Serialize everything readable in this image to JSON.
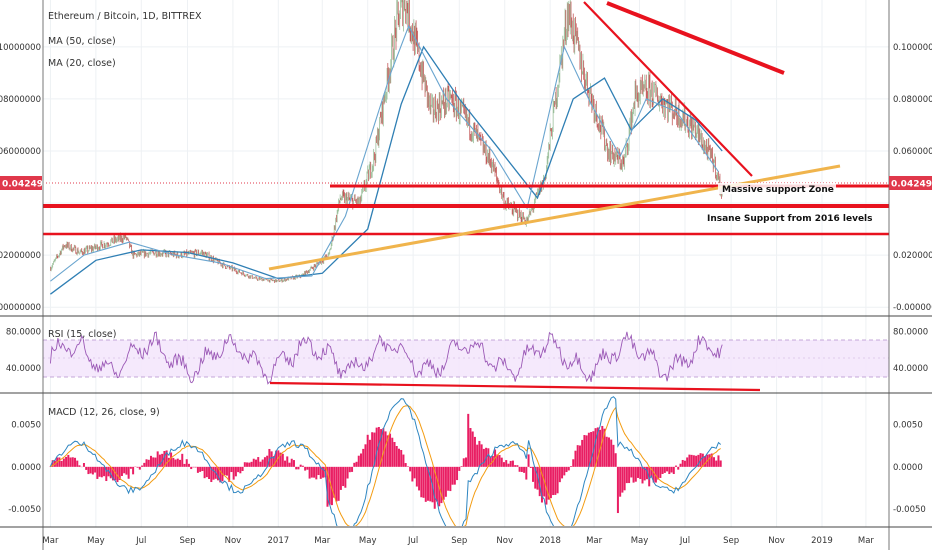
{
  "colors": {
    "price_line": "#7b3f3f",
    "ma50": "#2f7fb4",
    "ma20": "#6aa5cf",
    "rsi": "#9b59b6",
    "rsi_band": "#f3e5fb",
    "macd_line": "#2e86c1",
    "signal_line": "#f39c12",
    "hist": "#e91e63",
    "annotation_red": "#e8121e",
    "trend_orange": "#f0b44c",
    "price_label_bg": "#e0384b"
  },
  "chart_data": [
    {
      "type": "line",
      "title": "Ethereum / Bitcoin, 1D, BITTREX",
      "series": [
        {
          "name": "MA (50, close)"
        },
        {
          "name": "MA (20, close)"
        }
      ],
      "x_labels": [
        "Mar",
        "May",
        "Jul",
        "Sep",
        "Nov",
        "2017",
        "Mar",
        "May",
        "Jul",
        "Sep",
        "Nov",
        "2018",
        "Mar",
        "May",
        "Jul",
        "Sep",
        "Nov",
        "2019",
        "Mar"
      ],
      "y_ticks": [
        "0.10000000",
        "0.08000000",
        "0.06000000",
        "0.04249000",
        "0.02000000",
        "-0.00000000"
      ],
      "ylim": [
        -0.003,
        0.118
      ],
      "last_price": "0.04249000",
      "price_path": [
        [
          "2016-03-01",
          0.015
        ],
        [
          "2016-03-20",
          0.024
        ],
        [
          "2016-04-10",
          0.021
        ],
        [
          "2016-05-01",
          0.023
        ],
        [
          "2016-05-20",
          0.025
        ],
        [
          "2016-06-10",
          0.027
        ],
        [
          "2016-06-20",
          0.02
        ],
        [
          "2016-07-20",
          0.021
        ],
        [
          "2016-08-20",
          0.02
        ],
        [
          "2016-09-20",
          0.021
        ],
        [
          "2016-10-20",
          0.016
        ],
        [
          "2016-12-01",
          0.011
        ],
        [
          "2017-01-01",
          0.01
        ],
        [
          "2017-02-01",
          0.012
        ],
        [
          "2017-03-10",
          0.02
        ],
        [
          "2017-03-25",
          0.042
        ],
        [
          "2017-04-20",
          0.04
        ],
        [
          "2017-05-10",
          0.058
        ],
        [
          "2017-06-10",
          0.11
        ],
        [
          "2017-06-20",
          0.118
        ],
        [
          "2017-07-05",
          0.1
        ],
        [
          "2017-07-25",
          0.075
        ],
        [
          "2017-08-20",
          0.08
        ],
        [
          "2017-09-15",
          0.07
        ],
        [
          "2017-10-15",
          0.055
        ],
        [
          "2017-11-01",
          0.04
        ],
        [
          "2017-12-01",
          0.033
        ],
        [
          "2017-12-25",
          0.05
        ],
        [
          "2018-01-15",
          0.094
        ],
        [
          "2018-01-25",
          0.114
        ],
        [
          "2018-02-15",
          0.09
        ],
        [
          "2018-03-20",
          0.06
        ],
        [
          "2018-04-10",
          0.055
        ],
        [
          "2018-04-25",
          0.081
        ],
        [
          "2018-05-15",
          0.083
        ],
        [
          "2018-06-15",
          0.076
        ],
        [
          "2018-07-15",
          0.068
        ],
        [
          "2018-08-10",
          0.055
        ],
        [
          "2018-08-20",
          0.04249
        ]
      ],
      "ma50_path": [
        [
          "2016-03-01",
          0.005
        ],
        [
          "2016-05-01",
          0.018
        ],
        [
          "2016-07-01",
          0.022
        ],
        [
          "2016-09-01",
          0.021
        ],
        [
          "2016-11-01",
          0.017
        ],
        [
          "2017-01-01",
          0.011
        ],
        [
          "2017-03-01",
          0.013
        ],
        [
          "2017-05-01",
          0.03
        ],
        [
          "2017-06-15",
          0.078
        ],
        [
          "2017-07-15",
          0.1
        ],
        [
          "2017-09-01",
          0.08
        ],
        [
          "2017-11-01",
          0.058
        ],
        [
          "2017-12-15",
          0.042
        ],
        [
          "2018-02-01",
          0.08
        ],
        [
          "2018-03-15",
          0.088
        ],
        [
          "2018-04-20",
          0.068
        ],
        [
          "2018-06-01",
          0.08
        ],
        [
          "2018-07-15",
          0.072
        ],
        [
          "2018-08-20",
          0.06
        ]
      ],
      "ma20_path": [
        [
          "2016-03-01",
          0.01
        ],
        [
          "2016-04-15",
          0.02
        ],
        [
          "2016-06-15",
          0.025
        ],
        [
          "2016-08-15",
          0.02
        ],
        [
          "2016-10-15",
          0.017
        ],
        [
          "2016-12-15",
          0.011
        ],
        [
          "2017-02-15",
          0.012
        ],
        [
          "2017-04-01",
          0.035
        ],
        [
          "2017-06-01",
          0.09
        ],
        [
          "2017-06-25",
          0.108
        ],
        [
          "2017-08-15",
          0.08
        ],
        [
          "2017-10-15",
          0.06
        ],
        [
          "2017-12-01",
          0.038
        ],
        [
          "2018-01-20",
          0.1
        ],
        [
          "2018-02-25",
          0.078
        ],
        [
          "2018-04-05",
          0.058
        ],
        [
          "2018-05-10",
          0.08
        ],
        [
          "2018-06-20",
          0.075
        ],
        [
          "2018-08-15",
          0.052
        ]
      ],
      "annotations": [
        {
          "text": "Massive support Zone"
        },
        {
          "text": "Insane Support from 2016 levels"
        }
      ]
    },
    {
      "type": "line",
      "title": "RSI (15, close)",
      "y_ticks": [
        "80.0000",
        "40.0000"
      ],
      "ylim": [
        15,
        95
      ],
      "band": [
        30,
        70
      ]
    },
    {
      "type": "line",
      "title": "MACD (12, 26, close, 9)",
      "y_ticks": [
        "0.0050",
        "0.0000",
        "-0.0050"
      ],
      "ylim": [
        -0.007,
        0.0085
      ]
    }
  ]
}
